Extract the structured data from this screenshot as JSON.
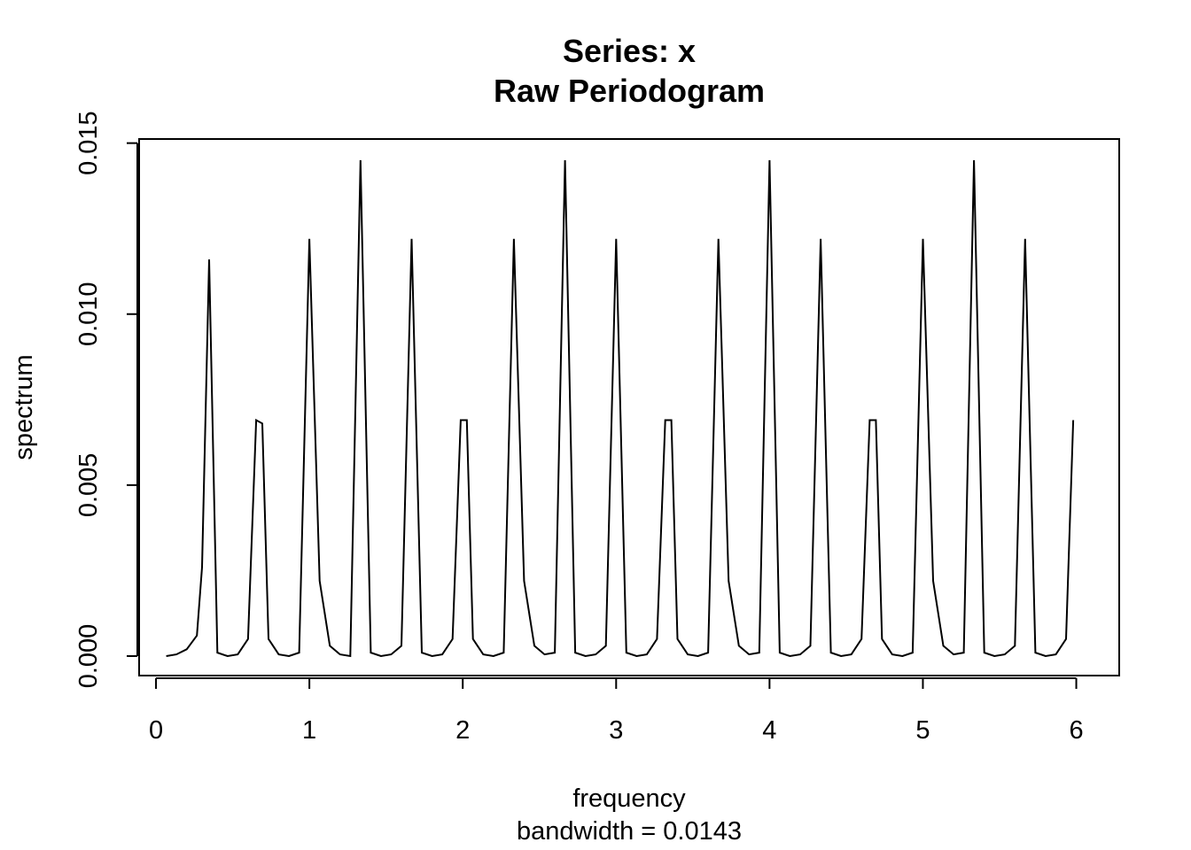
{
  "chart_data": {
    "type": "line",
    "title": "Series: x",
    "subtitle": "Raw Periodogram",
    "xlabel": "frequency",
    "xlabel2": "bandwidth = 0.0143",
    "ylabel": "spectrum",
    "xlim": [
      -0.11,
      6.28
    ],
    "ylim": [
      -0.00057,
      0.01512
    ],
    "x_ticks": [
      "0",
      "1",
      "2",
      "3",
      "4",
      "5",
      "6"
    ],
    "y_ticks": [
      "0.000",
      "0.005",
      "0.010",
      "0.015"
    ],
    "grid": false,
    "series": [
      {
        "x": [
          0.0667,
          0.1333,
          0.2,
          0.2667,
          0.3,
          0.3467,
          0.4,
          0.4667,
          0.5333,
          0.6,
          0.6533,
          0.6933,
          0.7333,
          0.8,
          0.8667,
          0.9333,
          1.0,
          1.0667,
          1.1333,
          1.2,
          1.2667,
          1.3333,
          1.4,
          1.4667,
          1.5333,
          1.6,
          1.6667,
          1.7333,
          1.8,
          1.8667,
          1.9333,
          1.9867,
          2.0267,
          2.0667,
          2.1333,
          2.2,
          2.2667,
          2.3333,
          2.4,
          2.4667,
          2.5333,
          2.6,
          2.6667,
          2.7333,
          2.8,
          2.8667,
          2.9333,
          3.0,
          3.0667,
          3.1333,
          3.2,
          3.2667,
          3.32,
          3.36,
          3.4,
          3.4667,
          3.5333,
          3.6,
          3.6667,
          3.7333,
          3.8,
          3.8667,
          3.9333,
          4.0,
          4.0667,
          4.1333,
          4.2,
          4.2667,
          4.3333,
          4.4,
          4.4667,
          4.5333,
          4.6,
          4.6533,
          4.6933,
          4.7333,
          4.8,
          4.8667,
          4.9333,
          5.0,
          5.0667,
          5.1333,
          5.2,
          5.2667,
          5.3333,
          5.4,
          5.4667,
          5.5333,
          5.6,
          5.6667,
          5.7333,
          5.8,
          5.8667,
          5.9333,
          5.98
        ],
        "values": [
          0.0,
          5e-05,
          0.0002,
          0.0006,
          0.0026,
          0.0116,
          0.0001,
          0.0,
          5e-05,
          0.0005,
          0.0069,
          0.0068,
          0.0005,
          5e-05,
          0.0,
          0.0001,
          0.0122,
          0.0022,
          0.0003,
          5e-05,
          0.0,
          0.0145,
          0.0001,
          0.0,
          5e-05,
          0.0003,
          0.0122,
          0.0001,
          0.0,
          5e-05,
          0.0005,
          0.0069,
          0.0069,
          0.0005,
          5e-05,
          0.0,
          0.0001,
          0.0122,
          0.0022,
          0.0003,
          5e-05,
          0.0001,
          0.0145,
          0.0001,
          0.0,
          5e-05,
          0.0003,
          0.0122,
          0.0001,
          0.0,
          5e-05,
          0.0005,
          0.0069,
          0.0069,
          0.0005,
          5e-05,
          0.0,
          0.0001,
          0.0122,
          0.0022,
          0.0003,
          5e-05,
          0.0001,
          0.0145,
          0.0001,
          0.0,
          5e-05,
          0.0003,
          0.0122,
          0.0001,
          0.0,
          5e-05,
          0.0005,
          0.0069,
          0.0069,
          0.0005,
          5e-05,
          0.0,
          0.0001,
          0.0122,
          0.0022,
          0.0003,
          5e-05,
          0.0001,
          0.0145,
          0.0001,
          0.0,
          5e-05,
          0.0003,
          0.0122,
          0.0001,
          0.0,
          5e-05,
          0.0005,
          0.0069
        ]
      }
    ]
  }
}
